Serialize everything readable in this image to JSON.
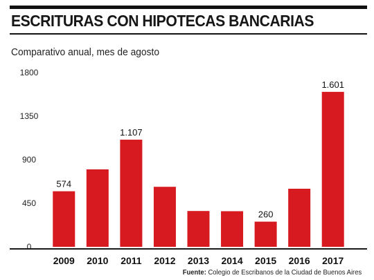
{
  "header": {
    "title": "ESCRITURAS CON HIPOTECAS BANCARIAS",
    "subtitle": "Comparativo anual, mes de agosto"
  },
  "footer": {
    "source_label": "Fuente:",
    "source_text": "Colegio de Escribanos de la Ciudad de Buenos Aires"
  },
  "colors": {
    "bar": "#d71920",
    "axis": "#1a1a1a"
  },
  "chart_data": {
    "type": "bar",
    "title": "ESCRITURAS CON HIPOTECAS BANCARIAS",
    "subtitle": "Comparativo anual, mes de agosto",
    "xlabel": "",
    "ylabel": "",
    "categories": [
      "2009",
      "2010",
      "2011",
      "2012",
      "2013",
      "2014",
      "2015",
      "2016",
      "2017"
    ],
    "values": [
      574,
      800,
      1107,
      620,
      370,
      368,
      260,
      600,
      1601
    ],
    "data_labels": [
      "574",
      "",
      "1.107",
      "",
      "",
      "",
      "260",
      "",
      "1.601"
    ],
    "yticks": [
      0,
      450,
      900,
      1350,
      1800
    ],
    "ylim": [
      0,
      1800
    ],
    "grid": false,
    "legend": "none"
  }
}
